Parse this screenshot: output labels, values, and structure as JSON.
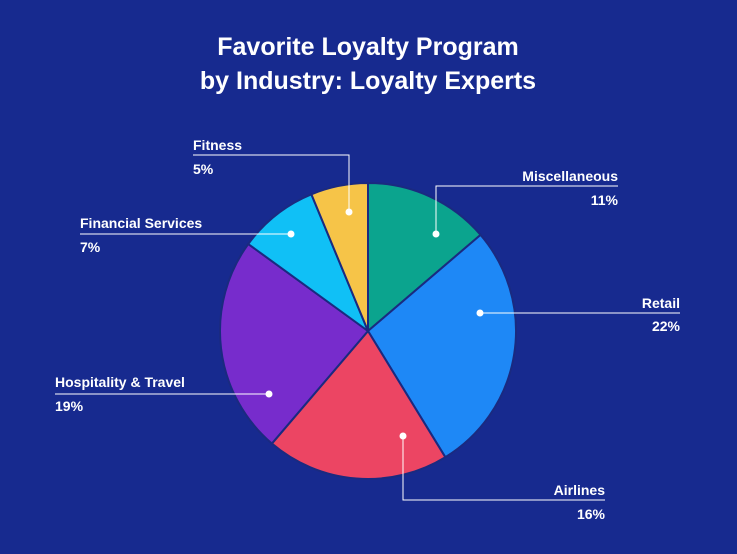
{
  "chart_data": {
    "type": "pie",
    "title_lines": [
      "Favorite Loyalty Program",
      "by Industry: Loyalty Experts"
    ],
    "slices": [
      {
        "label": "Miscellaneous",
        "value": 11,
        "display": "11%",
        "color": "#0ba48e"
      },
      {
        "label": "Retail",
        "value": 22,
        "display": "22%",
        "color": "#1e88f6"
      },
      {
        "label": "Airlines",
        "value": 16,
        "display": "16%",
        "color": "#ec4563"
      },
      {
        "label": "Hospitality & Travel",
        "value": 19,
        "display": "19%",
        "color": "#772ccc"
      },
      {
        "label": "Financial Services",
        "value": 7,
        "display": "7%",
        "color": "#10c0f6"
      },
      {
        "label": "Fitness",
        "value": 5,
        "display": "5%",
        "color": "#f6c448"
      }
    ],
    "background": "#172a8f"
  }
}
